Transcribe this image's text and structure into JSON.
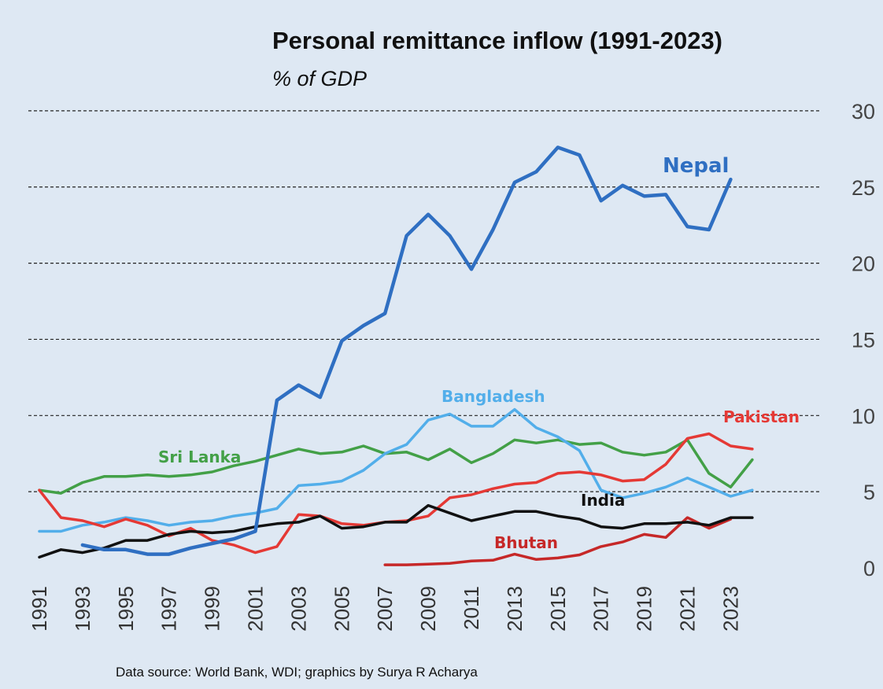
{
  "chart_data": {
    "type": "line",
    "title": "Personal remittance inflow (1991-2023)",
    "subtitle": "% of GDP",
    "xlabel": "",
    "ylabel": "",
    "xlim": [
      1991,
      2024
    ],
    "ylim": [
      0,
      30
    ],
    "yticks": [
      0,
      5,
      10,
      15,
      20,
      25,
      30
    ],
    "xticks": [
      "1991",
      "1993",
      "1995",
      "1997",
      "1999",
      "2001",
      "2003",
      "2005",
      "2007",
      "2009",
      "2011",
      "2013",
      "2015",
      "2017",
      "2019",
      "2021",
      "2023"
    ],
    "grid": "horizontal dashed",
    "y_axis_side": "right",
    "source": "Data source: World Bank, WDI; graphics by Surya R Acharya",
    "series": [
      {
        "name": "Nepal",
        "color": "#2f6fc2",
        "x": [
          1993,
          1994,
          1995,
          1996,
          1997,
          1998,
          1999,
          2000,
          2001,
          2002,
          2003,
          2004,
          2005,
          2006,
          2007,
          2008,
          2009,
          2010,
          2011,
          2012,
          2013,
          2014,
          2015,
          2016,
          2017,
          2018,
          2019,
          2020,
          2021,
          2022,
          2023
        ],
        "values": [
          1.5,
          1.2,
          1.2,
          0.9,
          0.9,
          1.3,
          1.6,
          1.9,
          2.4,
          11.0,
          12.0,
          11.2,
          14.9,
          15.9,
          16.7,
          21.8,
          23.2,
          21.8,
          19.6,
          22.2,
          25.3,
          26.0,
          27.6,
          27.1,
          24.1,
          25.1,
          24.4,
          24.5,
          22.4,
          22.2,
          25.5
        ]
      },
      {
        "name": "Bangladesh",
        "color": "#52aeea",
        "x": [
          1991,
          1992,
          1993,
          1994,
          1995,
          1996,
          1997,
          1998,
          1999,
          2000,
          2001,
          2002,
          2003,
          2004,
          2005,
          2006,
          2007,
          2008,
          2009,
          2010,
          2011,
          2012,
          2013,
          2014,
          2015,
          2016,
          2017,
          2018,
          2019,
          2020,
          2021,
          2022,
          2023,
          2024
        ],
        "values": [
          2.4,
          2.4,
          2.8,
          3.0,
          3.3,
          3.1,
          2.8,
          3.0,
          3.1,
          3.4,
          3.6,
          3.9,
          5.4,
          5.5,
          5.7,
          6.4,
          7.5,
          8.1,
          9.7,
          10.1,
          9.3,
          9.3,
          10.4,
          9.2,
          8.6,
          7.7,
          5.1,
          4.6,
          4.9,
          5.3,
          5.9,
          5.3,
          4.7,
          5.1
        ]
      },
      {
        "name": "Sri Lanka",
        "color": "#43a047",
        "x": [
          1991,
          1992,
          1993,
          1994,
          1995,
          1996,
          1997,
          1998,
          1999,
          2000,
          2001,
          2002,
          2003,
          2004,
          2005,
          2006,
          2007,
          2008,
          2009,
          2010,
          2011,
          2012,
          2013,
          2014,
          2015,
          2016,
          2017,
          2018,
          2019,
          2020,
          2021,
          2022,
          2023,
          2024
        ],
        "values": [
          5.1,
          4.9,
          5.6,
          6.0,
          6.0,
          6.1,
          6.0,
          6.1,
          6.3,
          6.7,
          7.0,
          7.4,
          7.8,
          7.5,
          7.6,
          8.0,
          7.5,
          7.6,
          7.1,
          7.8,
          6.9,
          7.5,
          8.4,
          8.2,
          8.4,
          8.1,
          8.2,
          7.6,
          7.4,
          7.6,
          8.4,
          6.2,
          5.3,
          7.1
        ]
      },
      {
        "name": "Pakistan",
        "color": "#e53935",
        "x": [
          1991,
          1992,
          1993,
          1994,
          1995,
          1996,
          1997,
          1998,
          1999,
          2000,
          2001,
          2002,
          2003,
          2004,
          2005,
          2006,
          2007,
          2008,
          2009,
          2010,
          2011,
          2012,
          2013,
          2014,
          2015,
          2016,
          2017,
          2018,
          2019,
          2020,
          2021,
          2022,
          2023,
          2024
        ],
        "values": [
          5.1,
          3.3,
          3.1,
          2.7,
          3.2,
          2.8,
          2.1,
          2.6,
          1.8,
          1.5,
          1.0,
          1.4,
          3.5,
          3.4,
          2.9,
          2.8,
          3.0,
          3.1,
          3.4,
          4.6,
          4.8,
          5.2,
          5.5,
          5.6,
          6.2,
          6.3,
          6.1,
          5.7,
          5.8,
          6.8,
          8.5,
          8.8,
          8.0,
          7.8
        ]
      },
      {
        "name": "India",
        "color": "#111111",
        "x": [
          1991,
          1992,
          1993,
          1994,
          1995,
          1996,
          1997,
          1998,
          1999,
          2000,
          2001,
          2002,
          2003,
          2004,
          2005,
          2006,
          2007,
          2008,
          2009,
          2010,
          2011,
          2012,
          2013,
          2014,
          2015,
          2016,
          2017,
          2018,
          2019,
          2020,
          2021,
          2022,
          2023,
          2024
        ],
        "values": [
          0.7,
          1.2,
          1.0,
          1.3,
          1.8,
          1.8,
          2.2,
          2.4,
          2.3,
          2.4,
          2.7,
          2.9,
          3.0,
          3.4,
          2.6,
          2.7,
          3.0,
          3.0,
          4.1,
          3.6,
          3.1,
          3.4,
          3.7,
          3.7,
          3.4,
          3.2,
          2.7,
          2.6,
          2.9,
          2.9,
          3.0,
          2.8,
          3.3,
          3.3
        ]
      },
      {
        "name": "Bhutan",
        "color": "#c62828",
        "x": [
          2007,
          2008,
          2009,
          2010,
          2011,
          2012,
          2013,
          2014,
          2015,
          2016,
          2017,
          2018,
          2019,
          2020,
          2021,
          2022,
          2023
        ],
        "values": [
          0.2,
          0.2,
          0.25,
          0.3,
          0.45,
          0.5,
          0.9,
          0.55,
          0.65,
          0.85,
          1.4,
          1.7,
          2.2,
          2.0,
          3.3,
          2.6,
          3.2
        ]
      }
    ]
  }
}
